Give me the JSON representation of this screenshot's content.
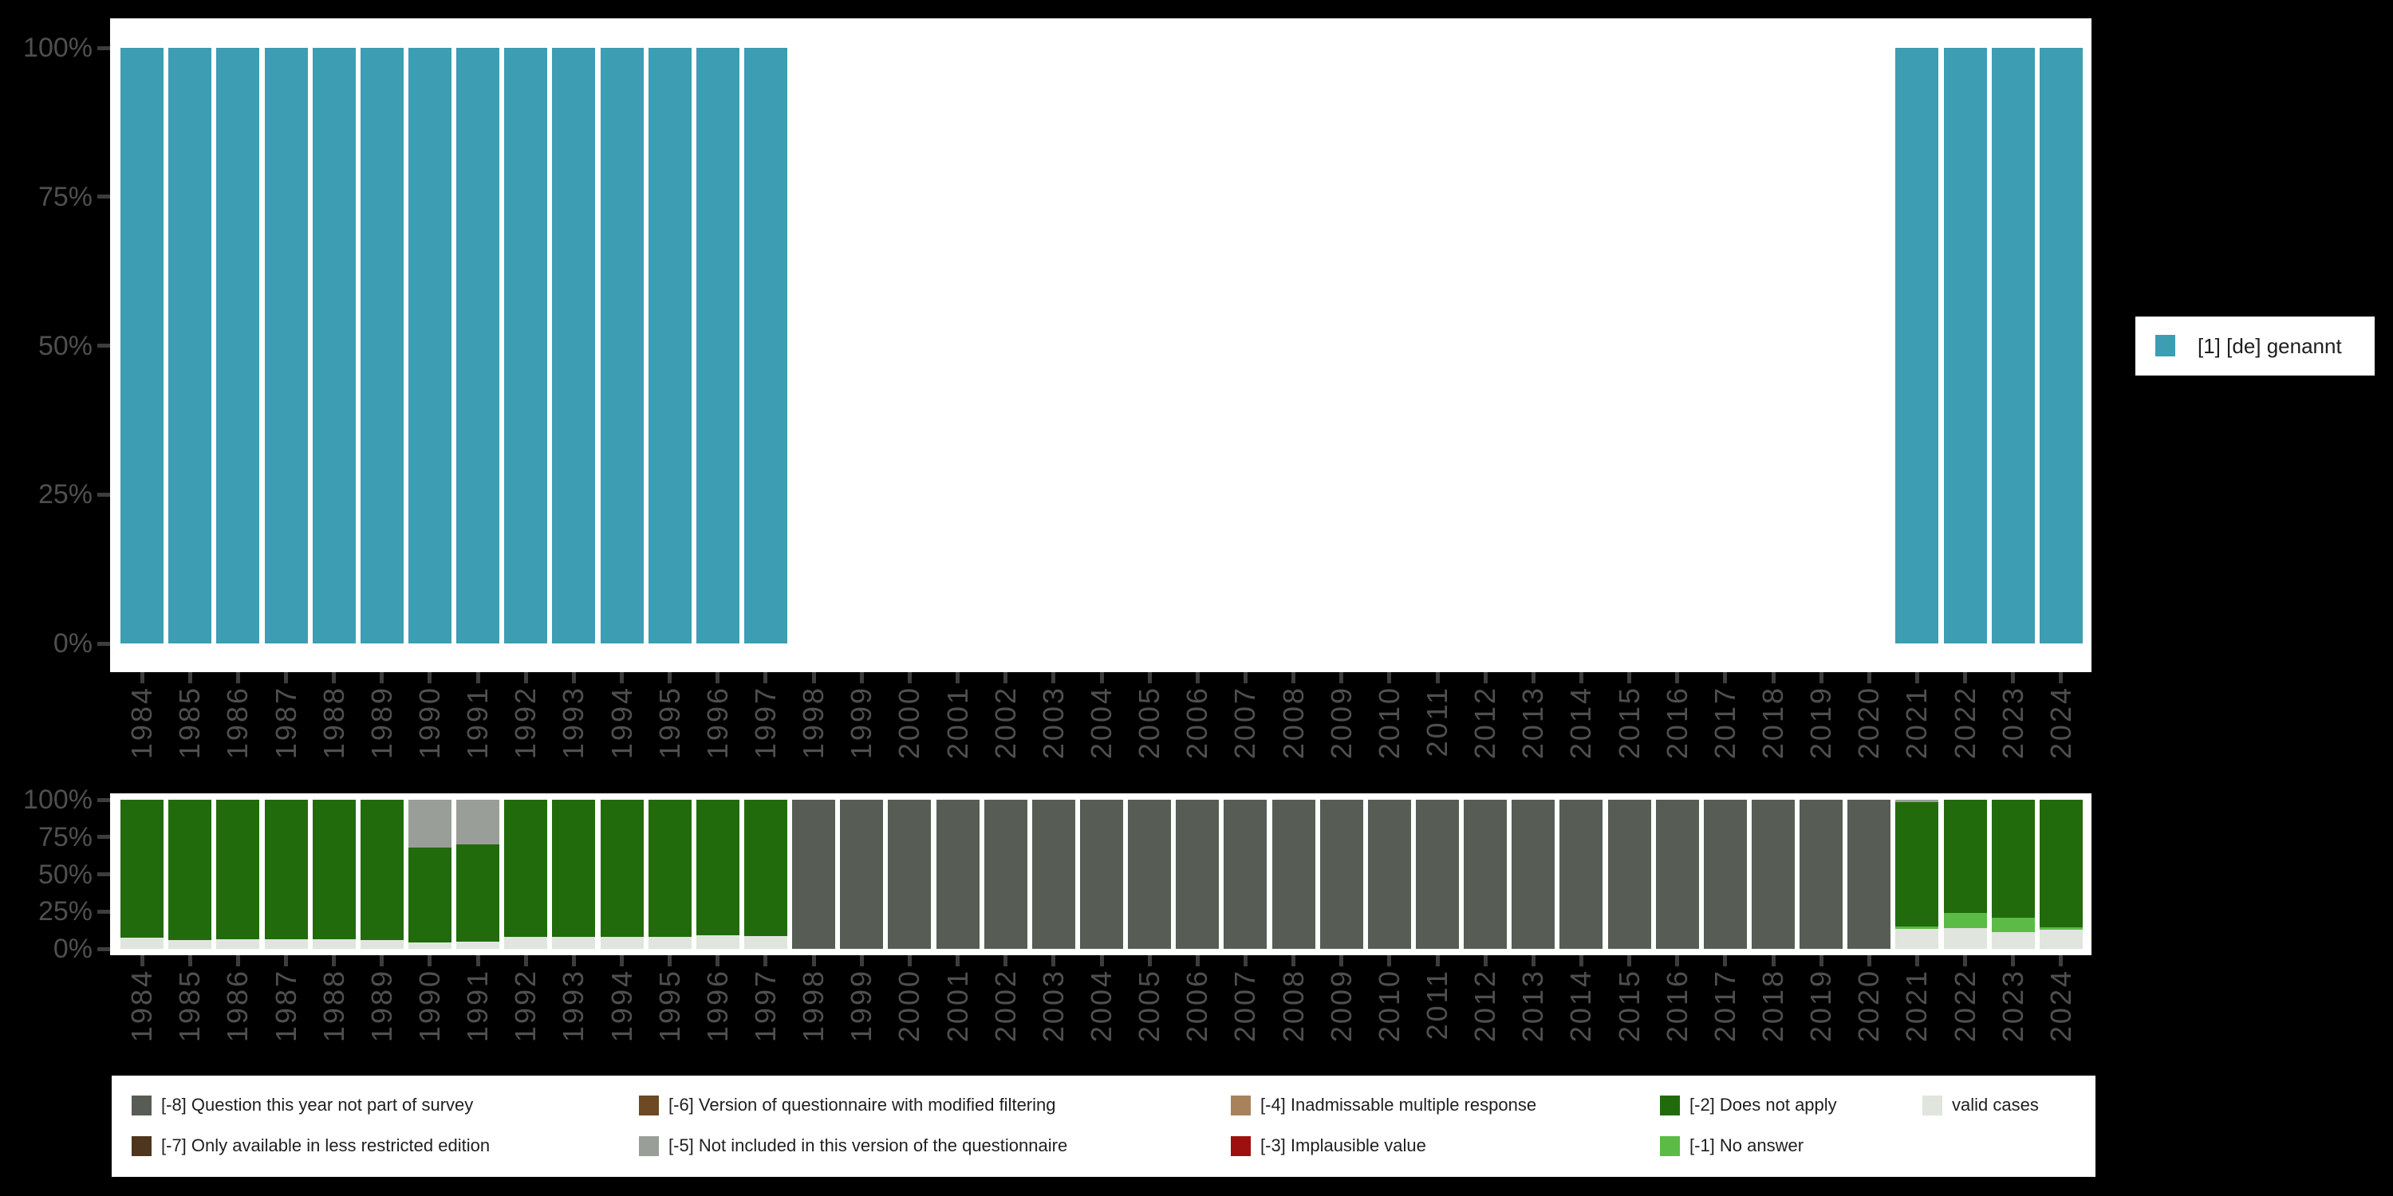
{
  "canvas": {
    "background": "#000000",
    "panel_background": "#ffffff"
  },
  "colors": {
    "axis_text": "#4f4f4f",
    "tick": "#3d3d3d",
    "legend_text": "#1f1f1f"
  },
  "years": [
    "1984",
    "1985",
    "1986",
    "1987",
    "1988",
    "1989",
    "1990",
    "1991",
    "1992",
    "1993",
    "1994",
    "1995",
    "1996",
    "1997",
    "1998",
    "1999",
    "2000",
    "2001",
    "2002",
    "2003",
    "2004",
    "2005",
    "2006",
    "2007",
    "2008",
    "2009",
    "2010",
    "2011",
    "2012",
    "2013",
    "2014",
    "2015",
    "2016",
    "2017",
    "2018",
    "2019",
    "2020",
    "2021",
    "2022",
    "2023",
    "2024"
  ],
  "y_axis": {
    "tick_labels": [
      "100%",
      "75%",
      "50%",
      "25%",
      "0%"
    ]
  },
  "legend_right": {
    "label": "[1] [de] genannt",
    "color": "#3d9db2"
  },
  "legend_bottom": {
    "entries": [
      {
        "label": "[-8] Question this year not part of survey",
        "color": "#575c54",
        "col": 0,
        "row": 0
      },
      {
        "label": "[-7] Only available in less restricted edition",
        "color": "#4e351d",
        "col": 0,
        "row": 1
      },
      {
        "label": "[-6] Version of questionnaire with modified filtering",
        "color": "#6d4a23",
        "col": 1,
        "row": 0
      },
      {
        "label": "[-5] Not included in this version of the questionnaire",
        "color": "#9a9e98",
        "col": 1,
        "row": 1
      },
      {
        "label": "[-4] Inadmissable multiple response",
        "color": "#a8825a",
        "col": 2,
        "row": 0
      },
      {
        "label": "[-3] Implausible value",
        "color": "#9e100f",
        "col": 2,
        "row": 1
      },
      {
        "label": "[-2] Does not apply",
        "color": "#226b0d",
        "col": 3,
        "row": 0
      },
      {
        "label": "[-1] No answer",
        "color": "#5bbb45",
        "col": 3,
        "row": 1
      },
      {
        "label": "valid cases",
        "color": "#e0e5dd",
        "col": 4,
        "row": 0
      }
    ]
  },
  "chart_data": [
    {
      "type": "bar",
      "title": "",
      "categories": [
        "1984",
        "1985",
        "1986",
        "1987",
        "1988",
        "1989",
        "1990",
        "1991",
        "1992",
        "1993",
        "1994",
        "1995",
        "1996",
        "1997",
        "1998",
        "1999",
        "2000",
        "2001",
        "2002",
        "2003",
        "2004",
        "2005",
        "2006",
        "2007",
        "2008",
        "2009",
        "2010",
        "2011",
        "2012",
        "2013",
        "2014",
        "2015",
        "2016",
        "2017",
        "2018",
        "2019",
        "2020",
        "2021",
        "2022",
        "2023",
        "2024"
      ],
      "series": [
        {
          "name": "[1] [de] genannt",
          "color": "#3d9db2",
          "values": [
            100,
            100,
            100,
            100,
            100,
            100,
            100,
            100,
            100,
            100,
            100,
            100,
            100,
            100,
            null,
            null,
            null,
            null,
            null,
            null,
            null,
            null,
            null,
            null,
            null,
            null,
            null,
            null,
            null,
            null,
            null,
            null,
            null,
            null,
            null,
            null,
            null,
            100,
            100,
            100,
            100
          ]
        }
      ],
      "xlabel": "",
      "ylabel": "",
      "ylim": [
        0,
        100
      ],
      "ytick_labels": [
        "0%",
        "25%",
        "50%",
        "75%",
        "100%"
      ],
      "grid": false,
      "legend_position": "right"
    },
    {
      "type": "bar",
      "stacked": true,
      "stack_order": "bottom_to_top",
      "title": "",
      "categories": [
        "1984",
        "1985",
        "1986",
        "1987",
        "1988",
        "1989",
        "1990",
        "1991",
        "1992",
        "1993",
        "1994",
        "1995",
        "1996",
        "1997",
        "1998",
        "1999",
        "2000",
        "2001",
        "2002",
        "2003",
        "2004",
        "2005",
        "2006",
        "2007",
        "2008",
        "2009",
        "2010",
        "2011",
        "2012",
        "2013",
        "2014",
        "2015",
        "2016",
        "2017",
        "2018",
        "2019",
        "2020",
        "2021",
        "2022",
        "2023",
        "2024"
      ],
      "series": [
        {
          "name": "valid cases",
          "color": "#e0e5dd",
          "values": [
            7.5,
            6,
            6.5,
            6.5,
            6.5,
            6,
            4.5,
            5,
            8,
            8,
            8,
            8,
            9,
            8.5,
            0,
            0,
            0,
            0,
            0,
            0,
            0,
            0,
            0,
            0,
            0,
            0,
            0,
            0,
            0,
            0,
            0,
            0,
            0,
            0,
            0,
            0,
            0,
            13.5,
            14,
            11,
            13
          ]
        },
        {
          "name": "[-1] No answer",
          "color": "#5bbb45",
          "values": [
            0,
            0,
            0,
            0,
            0,
            0,
            0,
            0,
            0,
            0,
            0,
            0,
            0,
            0,
            0,
            0,
            0,
            0,
            0,
            0,
            0,
            0,
            0,
            0,
            0,
            0,
            0,
            0,
            0,
            0,
            0,
            0,
            0,
            0,
            0,
            0,
            0,
            1.5,
            10,
            10,
            1.5
          ]
        },
        {
          "name": "[-2] Does not apply",
          "color": "#226b0d",
          "values": [
            92.5,
            94,
            93.5,
            93.5,
            93.5,
            94,
            63.5,
            65,
            92,
            92,
            92,
            92,
            91,
            91.5,
            0,
            0,
            0,
            0,
            0,
            0,
            0,
            0,
            0,
            0,
            0,
            0,
            0,
            0,
            0,
            0,
            0,
            0,
            0,
            0,
            0,
            0,
            0,
            83.5,
            76,
            79,
            85.5
          ]
        },
        {
          "name": "[-5] Not included in this version of the questionnaire",
          "color": "#9a9e98",
          "values": [
            0,
            0,
            0,
            0,
            0,
            0,
            32,
            30,
            0,
            0,
            0,
            0,
            0,
            0,
            0,
            0,
            0,
            0,
            0,
            0,
            0,
            0,
            0,
            0,
            0,
            0,
            0,
            0,
            0,
            0,
            0,
            0,
            0,
            0,
            0,
            0,
            0,
            1.5,
            0,
            0,
            0
          ]
        },
        {
          "name": "[-8] Question this year not part of survey",
          "color": "#575c54",
          "values": [
            0,
            0,
            0,
            0,
            0,
            0,
            0,
            0,
            0,
            0,
            0,
            0,
            0,
            0,
            100,
            100,
            100,
            100,
            100,
            100,
            100,
            100,
            100,
            100,
            100,
            100,
            100,
            100,
            100,
            100,
            100,
            100,
            100,
            100,
            100,
            100,
            100,
            0,
            0,
            0,
            0
          ]
        }
      ],
      "legend_only_series": [
        "[-7] Only available in less restricted edition",
        "[-6] Version of questionnaire with modified filtering",
        "[-4] Inadmissable multiple response",
        "[-3] Implausible value"
      ],
      "xlabel": "",
      "ylabel": "",
      "ylim": [
        0,
        100
      ],
      "ytick_labels": [
        "0%",
        "25%",
        "50%",
        "75%",
        "100%"
      ],
      "grid": false,
      "legend_position": "bottom"
    }
  ]
}
